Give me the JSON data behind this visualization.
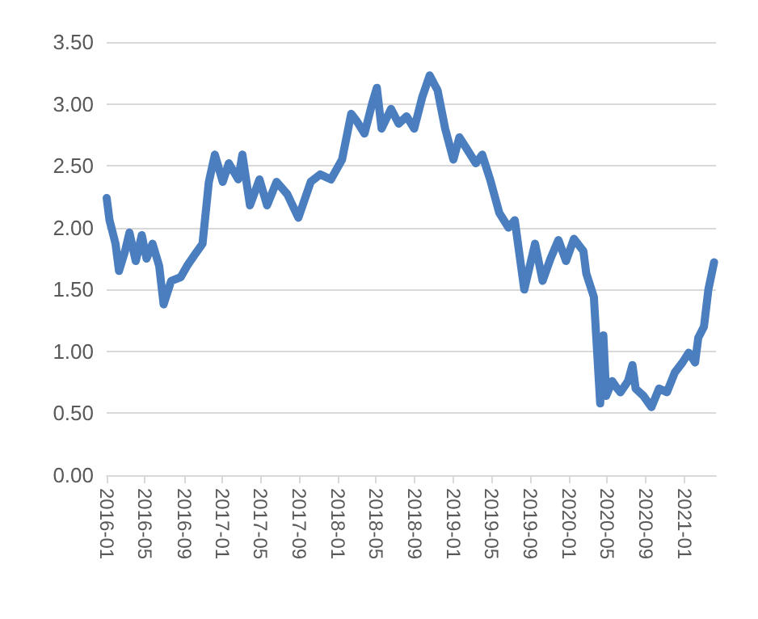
{
  "chart_data": {
    "type": "line",
    "x": [
      "2016-01-01",
      "2016-01-10",
      "2016-01-29",
      "2016-02-09",
      "2016-02-28",
      "2016-03-13",
      "2016-04-02",
      "2016-04-21",
      "2016-05-06",
      "2016-05-25",
      "2016-06-15",
      "2016-06-29",
      "2016-07-23",
      "2016-08-22",
      "2016-09-11",
      "2016-10-05",
      "2016-10-30",
      "2016-11-19",
      "2016-12-08",
      "2017-01-02",
      "2017-01-21",
      "2017-02-20",
      "2017-03-05",
      "2017-03-29",
      "2017-04-28",
      "2017-05-22",
      "2017-06-21",
      "2017-07-25",
      "2017-08-29",
      "2017-10-07",
      "2017-11-06",
      "2017-12-10",
      "2018-01-14",
      "2018-02-12",
      "2018-03-02",
      "2018-03-26",
      "2018-04-20",
      "2018-05-04",
      "2018-05-19",
      "2018-06-18",
      "2018-07-12",
      "2018-08-06",
      "2018-08-30",
      "2018-09-24",
      "2018-10-18",
      "2018-11-12",
      "2018-12-06",
      "2019-01-01",
      "2019-01-20",
      "2019-02-14",
      "2019-03-13",
      "2019-04-02",
      "2019-04-27",
      "2019-05-26",
      "2019-06-24",
      "2019-07-14",
      "2019-08-13",
      "2019-09-16",
      "2019-10-10",
      "2019-11-04",
      "2019-11-29",
      "2019-12-23",
      "2020-01-17",
      "2020-02-16",
      "2020-02-25",
      "2020-03-20",
      "2020-04-09",
      "2020-04-19",
      "2020-04-28",
      "2020-05-17",
      "2020-06-02",
      "2020-06-12",
      "2020-07-06",
      "2020-07-20",
      "2020-07-30",
      "2020-08-24",
      "2020-09-18",
      "2020-10-12",
      "2020-11-06",
      "2020-12-01",
      "2020-12-25",
      "2021-01-14",
      "2021-02-03",
      "2021-02-13",
      "2021-03-03",
      "2021-03-17",
      "2021-04-04"
    ],
    "series": [
      {
        "color": "#4a7ebf",
        "values": [
          2.24,
          2.06,
          1.87,
          1.65,
          1.81,
          1.96,
          1.73,
          1.94,
          1.75,
          1.87,
          1.69,
          1.38,
          1.57,
          1.6,
          1.69,
          1.78,
          1.87,
          2.37,
          2.59,
          2.37,
          2.52,
          2.39,
          2.59,
          2.18,
          2.39,
          2.18,
          2.37,
          2.27,
          2.08,
          2.37,
          2.43,
          2.39,
          2.55,
          2.92,
          2.86,
          2.76,
          3.01,
          3.13,
          2.8,
          2.96,
          2.84,
          2.9,
          2.8,
          3.05,
          3.23,
          3.11,
          2.8,
          2.55,
          2.73,
          2.63,
          2.52,
          2.59,
          2.39,
          2.12,
          2.0,
          2.06,
          1.5,
          1.87,
          1.57,
          1.75,
          1.9,
          1.73,
          1.91,
          1.81,
          1.63,
          1.44,
          0.58,
          1.13,
          0.64,
          0.76,
          0.7,
          0.67,
          0.76,
          0.89,
          0.7,
          0.64,
          0.55,
          0.7,
          0.67,
          0.83,
          0.91,
          0.99,
          0.91,
          1.11,
          1.2,
          1.5,
          1.72
        ]
      }
    ],
    "xlim": [
      "2016-01-01",
      "2021-04-10"
    ],
    "xticks": [
      "2016-01",
      "2016-05",
      "2016-09",
      "2017-01",
      "2017-05",
      "2017-09",
      "2018-01",
      "2018-05",
      "2018-09",
      "2019-01",
      "2019-05",
      "2019-09",
      "2020-01",
      "2020-05",
      "2020-09",
      "2021-01"
    ],
    "ylim": [
      0,
      3.5
    ],
    "yticks": [
      {
        "value": 0,
        "label": "0.00"
      },
      {
        "value": 0.5,
        "label": "0.50"
      },
      {
        "value": 1,
        "label": "1.00"
      },
      {
        "value": 1.5,
        "label": "1.50"
      },
      {
        "value": 2,
        "label": "2.00"
      },
      {
        "value": 2.5,
        "label": "2.50"
      },
      {
        "value": 3,
        "label": "3.00"
      },
      {
        "value": 3.5,
        "label": "3.50"
      }
    ],
    "grid": "y"
  }
}
